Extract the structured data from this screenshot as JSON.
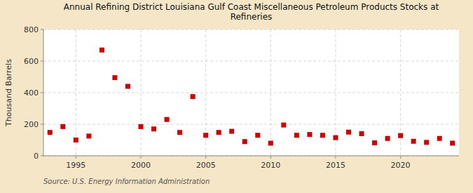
{
  "chart_data": {
    "type": "scatter",
    "title": "Annual Refining District Louisiana Gulf Coast Miscellaneous Petroleum Products Stocks at\nRefineries",
    "ylabel": "Thousand Barrels",
    "annotations": [
      "Source: U.S. Energy Information Administration"
    ],
    "x": [
      1993,
      1994,
      1995,
      1996,
      1997,
      1998,
      1999,
      2000,
      2001,
      2002,
      2003,
      2004,
      2005,
      2006,
      2007,
      2008,
      2009,
      2010,
      2011,
      2012,
      2013,
      2014,
      2015,
      2016,
      2017,
      2018,
      2019,
      2020,
      2021,
      2022,
      2023,
      2024
    ],
    "values": [
      148,
      185,
      100,
      125,
      670,
      495,
      440,
      185,
      170,
      230,
      148,
      375,
      130,
      148,
      155,
      90,
      130,
      80,
      195,
      130,
      135,
      130,
      115,
      150,
      140,
      82,
      110,
      128,
      92,
      85,
      110,
      80
    ],
    "color": "#cc0000",
    "marker": "square",
    "xlim": [
      1992.5,
      2024.5
    ],
    "ylim": [
      0,
      800
    ],
    "xticks": [
      1995,
      2000,
      2005,
      2010,
      2015,
      2020
    ],
    "yticks": [
      0,
      200,
      400,
      600,
      800
    ],
    "grid": true
  }
}
